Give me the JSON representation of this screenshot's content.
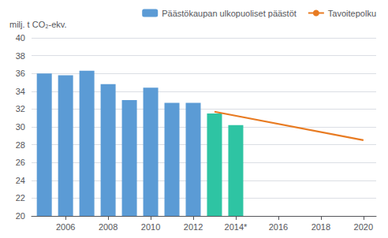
{
  "chart_data": {
    "type": "bar",
    "ylabel": "milj. t CO₂-ekv.",
    "xlim": [
      2004.4,
      2020.6
    ],
    "xticks": [
      2006,
      2008,
      2010,
      2012,
      {
        "value": 2014,
        "label": "2014*"
      },
      2016,
      2018,
      2020
    ],
    "ylim": [
      20,
      40
    ],
    "yticks": [
      20,
      22,
      24,
      26,
      28,
      30,
      32,
      34,
      36,
      38,
      40
    ],
    "grid": true,
    "legend": "upper right",
    "series": [
      {
        "name": "Päästökaupan ulkopuoliset päästöt",
        "type": "bar",
        "x": [
          2005,
          2006,
          2007,
          2008,
          2009,
          2010,
          2011,
          2012,
          2013,
          2014
        ],
        "values": [
          36.0,
          35.8,
          36.3,
          34.8,
          33.0,
          34.4,
          32.7,
          32.7,
          31.5,
          30.2
        ],
        "colors": [
          "#5b9bd5",
          "#5b9bd5",
          "#5b9bd5",
          "#5b9bd5",
          "#5b9bd5",
          "#5b9bd5",
          "#5b9bd5",
          "#5b9bd5",
          "#2ec4a3",
          "#2ec4a3"
        ]
      },
      {
        "name": "Tavoitepolku",
        "type": "line",
        "x": [
          2013,
          2020
        ],
        "values": [
          31.7,
          28.5
        ],
        "color": "#e87b22"
      }
    ]
  }
}
